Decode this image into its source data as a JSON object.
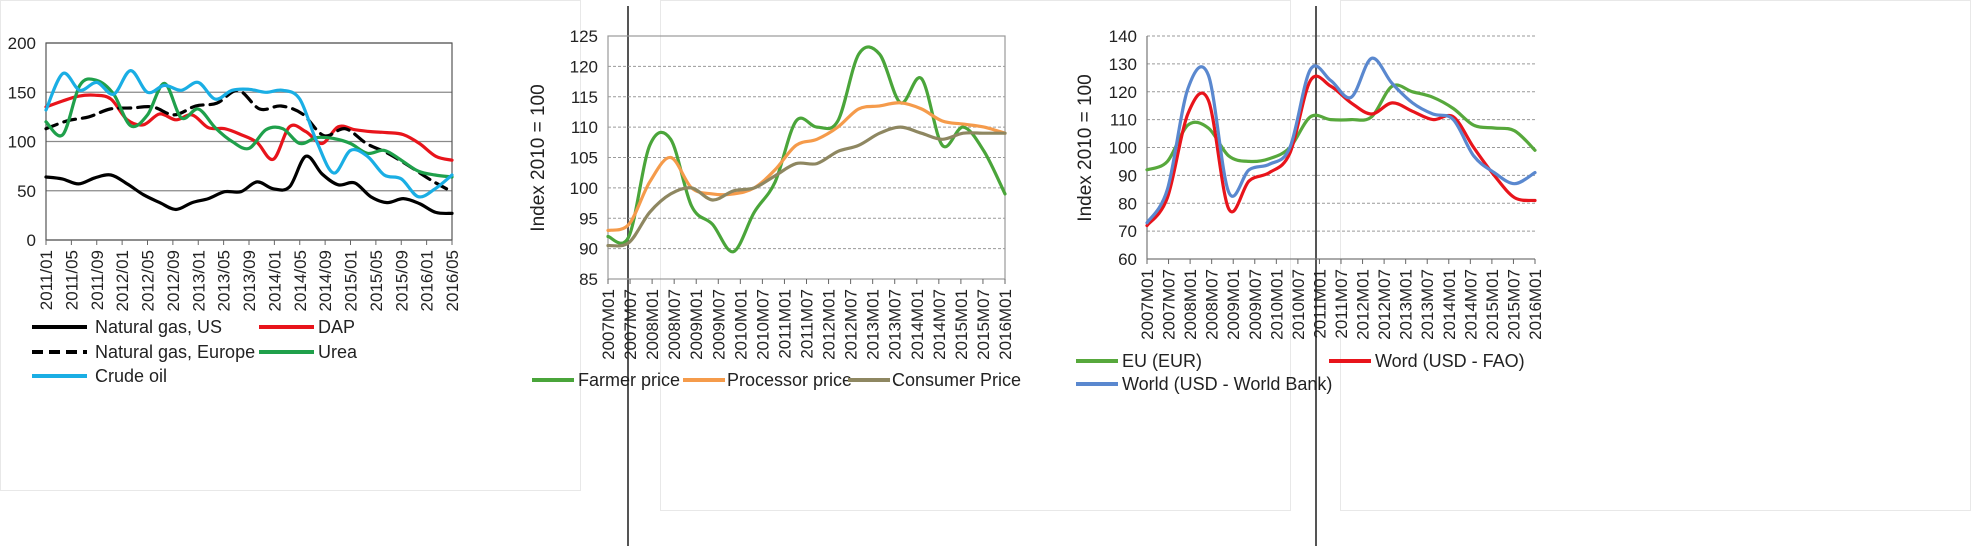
{
  "chart_data": [
    {
      "type": "line",
      "ylim": [
        0,
        200
      ],
      "yticks": [
        0,
        50,
        100,
        150,
        200
      ],
      "x_labels": [
        "2011/01",
        "2011/05",
        "2011/09",
        "2012/01",
        "2012/05",
        "2012/09",
        "2013/01",
        "2013/05",
        "2013/09",
        "2014/01",
        "2014/05",
        "2014/09",
        "2015/01",
        "2015/05",
        "2015/09",
        "2016/01",
        "2016/05"
      ],
      "x_step_months": 4,
      "grid": "horizontal",
      "legend": "bottom",
      "series": [
        {
          "name": "Natural gas, US",
          "color": "#000000",
          "dash": "solid",
          "values": [
            64,
            62,
            57,
            63,
            66,
            57,
            46,
            38,
            31,
            38,
            42,
            49,
            49,
            59,
            52,
            54,
            85,
            67,
            56,
            58,
            44,
            38,
            42,
            37,
            28,
            27
          ]
        },
        {
          "name": "DAP",
          "color": "#e8141b",
          "dash": "solid",
          "values": [
            135,
            141,
            146,
            147,
            143,
            122,
            117,
            128,
            122,
            127,
            114,
            113,
            107,
            99,
            82,
            115,
            110,
            98,
            115,
            112,
            110,
            109,
            107,
            98,
            85,
            81
          ]
        },
        {
          "name": "Natural gas, Europe",
          "color": "#000000",
          "dash": "dashed",
          "values": [
            113,
            121,
            125,
            133,
            134,
            135,
            127,
            136,
            139,
            152,
            133,
            136,
            128,
            106,
            113,
            98,
            88,
            75,
            61,
            49
          ]
        },
        {
          "name": "Urea",
          "color": "#1fa04b",
          "dash": "solid",
          "values": [
            120,
            107,
            157,
            162,
            148,
            116,
            127,
            159,
            124,
            133,
            114,
            100,
            93,
            112,
            113,
            98,
            104,
            103,
            98,
            88,
            91,
            81,
            70,
            66,
            64
          ]
        },
        {
          "name": "Crude oil",
          "color": "#1aaee4",
          "dash": "solid",
          "values": [
            132,
            169,
            152,
            160,
            148,
            172,
            150,
            157,
            152,
            160,
            143,
            152,
            153,
            150,
            152,
            143,
            100,
            68,
            91,
            85,
            66,
            62,
            44,
            52,
            66
          ]
        }
      ]
    },
    {
      "type": "line",
      "ylabel": "Index 2010 = 100",
      "ylim": [
        85,
        125
      ],
      "yticks": [
        85,
        90,
        95,
        100,
        105,
        110,
        115,
        120,
        125
      ],
      "x_labels": [
        "2007M01",
        "2007M07",
        "2008M01",
        "2008M07",
        "2009M01",
        "2009M07",
        "2010M01",
        "2010M07",
        "2011M01",
        "2011M07",
        "2012M01",
        "2012M07",
        "2013M01",
        "2013M07",
        "2014M01",
        "2014M07",
        "2015M01",
        "2015M07",
        "2016M01"
      ],
      "x_step_months": 6,
      "grid": "horizontal",
      "legend": "bottom",
      "series": [
        {
          "name": "Farmer price",
          "color": "#4aa53a",
          "dash": "solid",
          "values": [
            92,
            92,
            107,
            108,
            97,
            94,
            89.5,
            96,
            101,
            111,
            110,
            111,
            122,
            122,
            114,
            118,
            107,
            110,
            106,
            99
          ]
        },
        {
          "name": "Processor price",
          "color": "#f59b4b",
          "dash": "solid",
          "values": [
            93,
            94,
            101,
            105,
            100,
            99,
            99,
            100,
            103,
            107,
            108,
            110,
            113,
            113.5,
            114,
            113,
            111,
            110.5,
            110,
            109
          ]
        },
        {
          "name": "Consumer Price",
          "color": "#8e8761",
          "dash": "solid",
          "values": [
            90.5,
            91,
            96,
            99,
            100,
            98,
            99.5,
            100,
            102,
            104,
            104,
            106,
            107,
            109,
            110,
            109,
            108,
            109,
            109,
            109
          ]
        }
      ]
    },
    {
      "type": "line",
      "ylabel": "Index 2010 = 100",
      "ylim": [
        60,
        140
      ],
      "yticks": [
        60,
        70,
        80,
        90,
        100,
        110,
        120,
        130,
        140
      ],
      "x_labels": [
        "2007M01",
        "2007M07",
        "2008M01",
        "2008M07",
        "2009M01",
        "2009M07",
        "2010M01",
        "2010M07",
        "2011M01",
        "2011M07",
        "2012M01",
        "2012M07",
        "2013M01",
        "2013M07",
        "2014M01",
        "2014M07",
        "2015M01",
        "2015M07",
        "2016M01"
      ],
      "x_step_months": 6,
      "grid": "horizontal",
      "legend": "bottom",
      "series": [
        {
          "name": "EU (EUR)",
          "color": "#57a83c",
          "dash": "solid",
          "values": [
            92,
            95,
            108,
            107,
            97,
            95,
            96,
            100,
            111,
            110,
            110,
            111,
            122,
            120,
            118,
            114,
            108,
            107,
            106,
            99
          ]
        },
        {
          "name": "Word (USD - FAO)",
          "color": "#e8141b",
          "dash": "solid",
          "values": [
            72,
            82,
            112,
            117,
            78,
            88,
            91,
            98,
            124,
            122,
            116,
            112,
            116,
            113,
            110,
            111,
            100,
            90,
            82,
            81
          ]
        },
        {
          "name": "World (USD - World Bank)",
          "color": "#5a88cf",
          "dash": "solid",
          "values": [
            73,
            85,
            121,
            126,
            84,
            92,
            94,
            100,
            128,
            124,
            118,
            132,
            123,
            116,
            112,
            110,
            97,
            91,
            87,
            91
          ]
        }
      ]
    }
  ]
}
